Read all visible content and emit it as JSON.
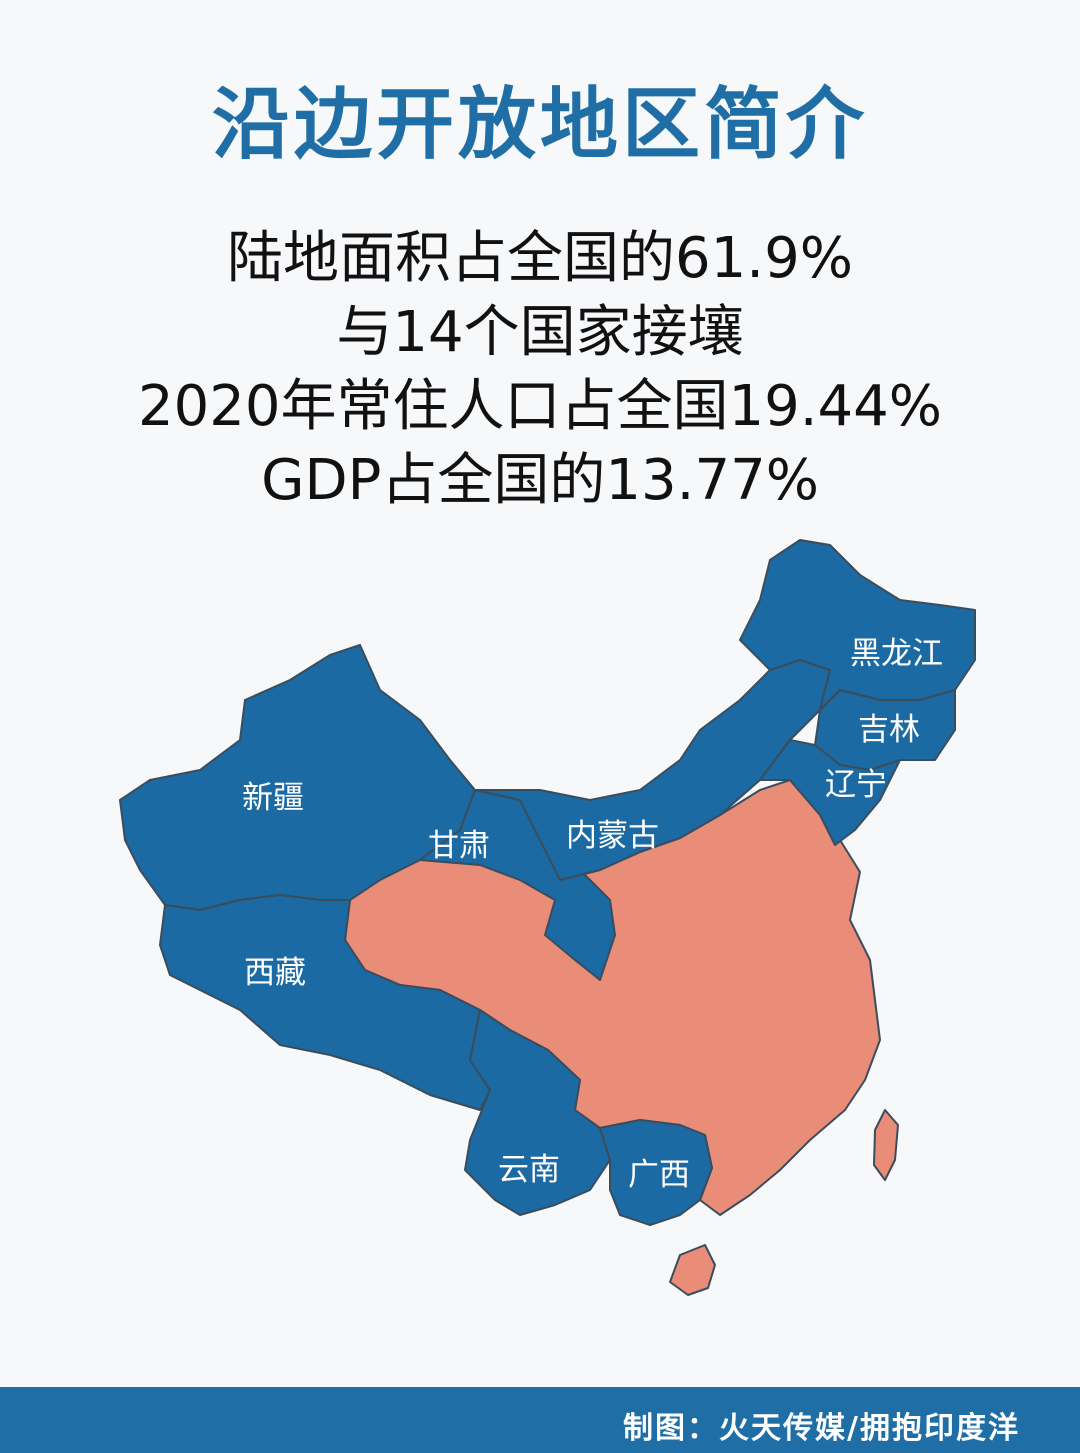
{
  "title": "沿边开放地区简介",
  "stats": [
    "陆地面积占全国的61.9%",
    "与14个国家接壤",
    "2020年常住人口占全国19.44%",
    "GDP占全国的13.77%"
  ],
  "map": {
    "colors": {
      "border_regions": "#1b6aa3",
      "interior_regions": "#e98c78",
      "boundary_lines": "#3a4d5c"
    },
    "regions": {
      "heilongjiang": "黑龙江",
      "jilin": "吉林",
      "liaoning": "辽宁",
      "xinjiang": "新疆",
      "gansu": "甘肃",
      "neimenggu": "内蒙古",
      "xizang": "西藏",
      "yunnan": "云南",
      "guangxi": "广西"
    }
  },
  "footer": {
    "credit": "制图：火天传媒/拥抱印度洋"
  }
}
